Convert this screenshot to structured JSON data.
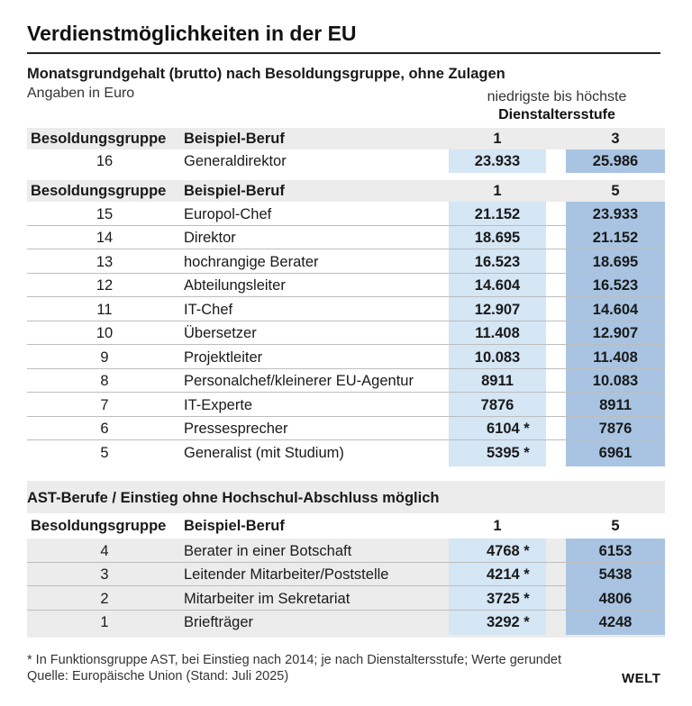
{
  "title": "Verdienstmöglichkeiten in der EU",
  "subtitle": "Monatsgrundgehalt (brutto) nach Besoldungsgruppe, ohne Zulagen",
  "unit": "Angaben in Euro",
  "step_note_line1": "niedrigste bis höchste",
  "step_note_line2": "Dienstaltersstufe",
  "col_group": "Besoldungsgruppe",
  "col_job": "Beispiel-Beruf",
  "section1": {
    "step_low": "1",
    "step_high": "3",
    "rows": [
      {
        "grp": "16",
        "job": "Generaldirektor",
        "v1": "23.933",
        "v2": "25.986"
      }
    ]
  },
  "section2": {
    "step_low": "1",
    "step_high": "5",
    "rows": [
      {
        "grp": "15",
        "job": "Europol-Chef",
        "v1": "21.152",
        "v2": "23.933"
      },
      {
        "grp": "14",
        "job": "Direktor",
        "v1": "18.695",
        "v2": "21.152"
      },
      {
        "grp": "13",
        "job": "hochrangige Berater",
        "v1": "16.523",
        "v2": "18.695"
      },
      {
        "grp": "12",
        "job": "Abteilungsleiter",
        "v1": "14.604",
        "v2": "16.523"
      },
      {
        "grp": "11",
        "job": "IT-Chef",
        "v1": "12.907",
        "v2": "14.604"
      },
      {
        "grp": "10",
        "job": "Übersetzer",
        "v1": "11.408",
        "v2": "12.907"
      },
      {
        "grp": "9",
        "job": "Projektleiter",
        "v1": "10.083",
        "v2": "11.408"
      },
      {
        "grp": "8",
        "job": "Personalchef/kleinerer EU-Agentur",
        "v1": "8911",
        "v2": "10.083"
      },
      {
        "grp": "7",
        "job": "IT-Experte",
        "v1": "7876",
        "v2": "8911"
      },
      {
        "grp": "6",
        "job": "Pressesprecher",
        "v1": "6104 *",
        "v2": "7876"
      },
      {
        "grp": "5",
        "job": " Generalist (mit Studium)",
        "v1": "5395 *",
        "v2": "6961"
      }
    ]
  },
  "ast": {
    "title": "AST-Berufe / Einstieg ohne Hochschul-Abschluss möglich",
    "step_low": "1",
    "step_high": "5",
    "rows": [
      {
        "grp": "4",
        "job": "Berater in einer Botschaft",
        "v1": "4768 *",
        "v2": "6153"
      },
      {
        "grp": "3",
        "job": "Leitender Mitarbeiter/Poststelle",
        "v1": "4214 *",
        "v2": "5438"
      },
      {
        "grp": "2",
        "job": "Mitarbeiter im Sekretariat",
        "v1": "3725 *",
        "v2": "4806"
      },
      {
        "grp": "1",
        "job": "Briefträger",
        "v1": "3292 *",
        "v2": "4248"
      }
    ]
  },
  "footnote": "* In Funktionsgruppe AST, bei Einstieg nach 2014; je nach Dienstaltersstufe; Werte gerundet",
  "source": "Quelle: Europäische Union (Stand: Juli 2025)",
  "logo": "WELT"
}
